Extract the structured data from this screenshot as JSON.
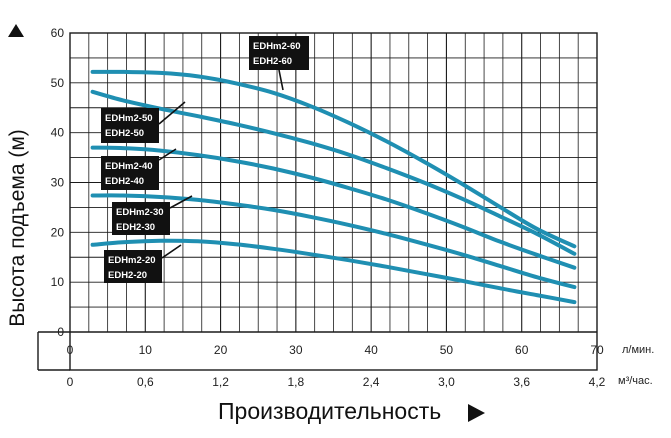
{
  "chart_data": {
    "type": "line",
    "ylabel": "Высота подъема (м)",
    "xlabel": "Производительность",
    "x_unit_primary": "л/мин.",
    "x_unit_secondary": "м³/час.",
    "xlim": [
      0,
      70
    ],
    "ylim": [
      0,
      60
    ],
    "x_ticks": [
      "0",
      "10",
      "20",
      "30",
      "40",
      "50",
      "60",
      "70"
    ],
    "x_secondary_ticks": [
      "0",
      "0,6",
      "1,2",
      "1,8",
      "2,4",
      "3,0",
      "3,6",
      "4,2"
    ],
    "y_ticks": [
      "0",
      "10",
      "20",
      "30",
      "40",
      "50",
      "60"
    ],
    "grid": true,
    "series": [
      {
        "name_lines": [
          "EDHm2-60",
          "EDH2-60"
        ],
        "x": [
          3,
          7,
          12,
          17,
          22,
          27,
          32,
          37,
          42,
          47,
          52,
          57,
          62,
          67
        ],
        "values": [
          52.2,
          52.2,
          52.0,
          51.3,
          49.9,
          48.0,
          45.3,
          42.0,
          38.3,
          34.2,
          29.8,
          25.2,
          20.7,
          17.2
        ]
      },
      {
        "name_lines": [
          "EDHm2-50",
          "EDH2-50"
        ],
        "x": [
          3,
          7,
          12,
          17,
          22,
          27,
          32,
          37,
          42,
          47,
          52,
          57,
          62,
          67
        ],
        "values": [
          48.2,
          46.5,
          44.8,
          43.3,
          41.7,
          39.9,
          37.9,
          35.6,
          32.9,
          30.0,
          26.8,
          23.3,
          19.7,
          15.7
        ]
      },
      {
        "name_lines": [
          "EDHm2-40",
          "EDH2-40"
        ],
        "x": [
          3,
          7,
          12,
          17,
          22,
          27,
          32,
          37,
          42,
          47,
          52,
          57,
          62,
          67
        ],
        "values": [
          37.0,
          36.9,
          36.4,
          35.5,
          34.3,
          32.8,
          31.0,
          28.9,
          26.6,
          24.0,
          21.2,
          18.2,
          15.5,
          12.9
        ]
      },
      {
        "name_lines": [
          "EDHm2-30",
          "EDH2-30"
        ],
        "x": [
          3,
          7,
          12,
          17,
          22,
          27,
          32,
          37,
          42,
          47,
          52,
          57,
          62,
          67
        ],
        "values": [
          27.4,
          27.4,
          27.1,
          26.5,
          25.6,
          24.5,
          23.1,
          21.5,
          19.7,
          17.7,
          15.6,
          13.3,
          11.0,
          9.0
        ]
      },
      {
        "name_lines": [
          "EDHm2-20",
          "EDH2-20"
        ],
        "x": [
          3,
          7,
          12,
          17,
          22,
          27,
          32,
          37,
          42,
          47,
          52,
          57,
          62,
          67
        ],
        "values": [
          17.5,
          18.0,
          18.3,
          18.2,
          17.6,
          16.7,
          15.6,
          14.4,
          13.1,
          11.7,
          10.3,
          8.8,
          7.4,
          6.0
        ]
      }
    ]
  },
  "colors": {
    "curve": "#1f8fb2",
    "grid": "#1a1a1a",
    "callout_bg": "#111111",
    "callout_text": "#ffffff"
  },
  "icons": {
    "y_axis_arrow": "triangle-up-icon",
    "x_axis_arrow": "triangle-right-icon"
  }
}
